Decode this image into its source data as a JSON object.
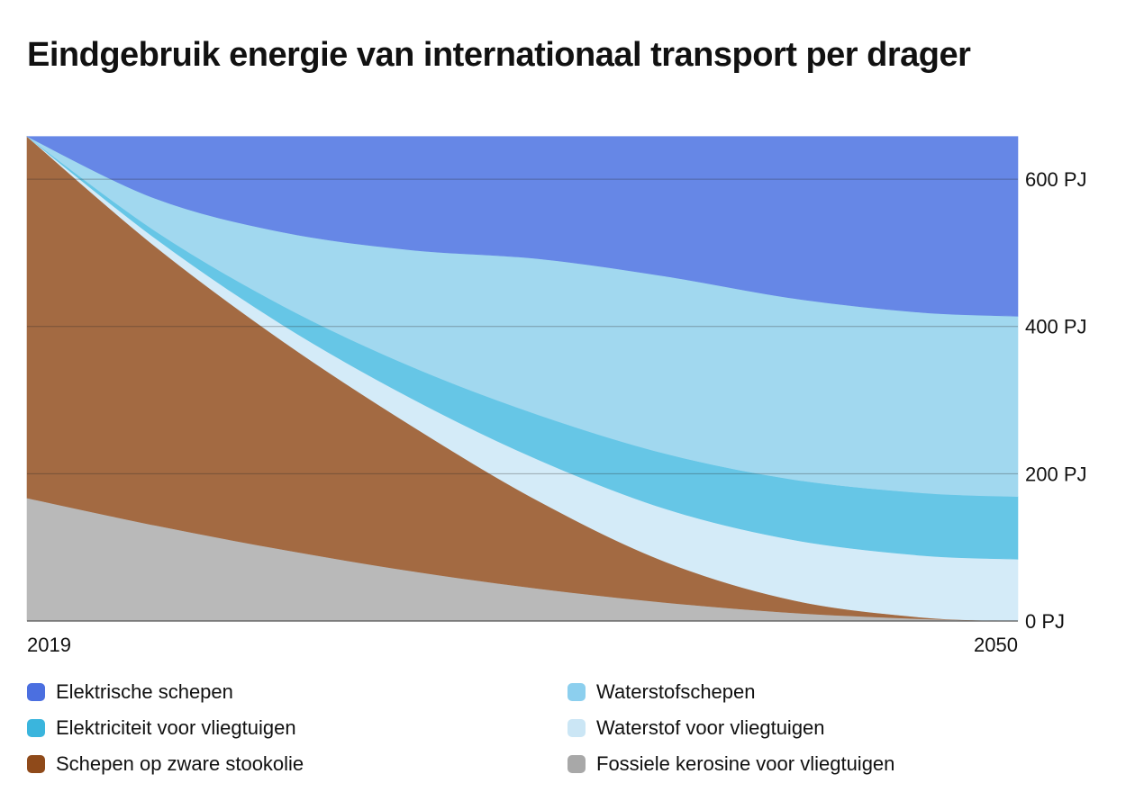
{
  "chart_data": {
    "type": "area",
    "title": "Eindgebruik energie van internationaal transport per drager",
    "xlabel": "",
    "ylabel": "",
    "x": [
      2019,
      2023,
      2027,
      2031,
      2035,
      2039,
      2043,
      2047,
      2050
    ],
    "x_tick_labels": [
      "2019",
      "2050"
    ],
    "y_unit": "PJ",
    "y_ticks": [
      0,
      200,
      400,
      600
    ],
    "y_tick_labels": [
      "0 PJ",
      "200 PJ",
      "400 PJ",
      "600 PJ"
    ],
    "ylim": [
      0,
      660
    ],
    "y_axis_position": "right",
    "grid": true,
    "legend_position": "bottom",
    "stacked": true,
    "series": [
      {
        "name": "Fossiele kerosine voor vliegtuigen",
        "color": "#b9b9b9",
        "values": [
          167,
          130,
          97,
          68,
          44,
          25,
          11,
          3,
          0
        ]
      },
      {
        "name": "Schepen op zware stookolie",
        "color": "#a36a42",
        "values": [
          491,
          379,
          283,
          198,
          119,
          55,
          17,
          2,
          0
        ]
      },
      {
        "name": "Waterstof voor vliegtuigen",
        "color": "#d4ebf8",
        "values": [
          0,
          11,
          22,
          37,
          56,
          72,
          82,
          84,
          84
        ]
      },
      {
        "name": "Elektriciteit voor vliegtuigen",
        "color": "#66c6e6",
        "values": [
          0,
          10,
          26,
          43,
          61,
          75,
          82,
          85,
          85
        ]
      },
      {
        "name": "Waterstofschepen",
        "color": "#a1d8ef",
        "values": [
          0,
          44,
          100,
          158,
          212,
          241,
          246,
          245,
          245
        ]
      },
      {
        "name": "Elektrische schepen",
        "color": "#6687e6",
        "values": [
          0,
          84,
          130,
          154,
          166,
          190,
          220,
          239,
          244
        ]
      }
    ]
  },
  "legend": {
    "items": [
      {
        "label": "Elektrische schepen",
        "color": "#4b6fe0"
      },
      {
        "label": "Waterstofschepen",
        "color": "#8ccfee"
      },
      {
        "label": "Elektriciteit voor vliegtuigen",
        "color": "#3ab5dd"
      },
      {
        "label": "Waterstof voor vliegtuigen",
        "color": "#cbe6f5"
      },
      {
        "label": "Schepen op zware stookolie",
        "color": "#8f4a1a"
      },
      {
        "label": "Fossiele kerosine voor vliegtuigen",
        "color": "#a8a8a8"
      }
    ]
  }
}
